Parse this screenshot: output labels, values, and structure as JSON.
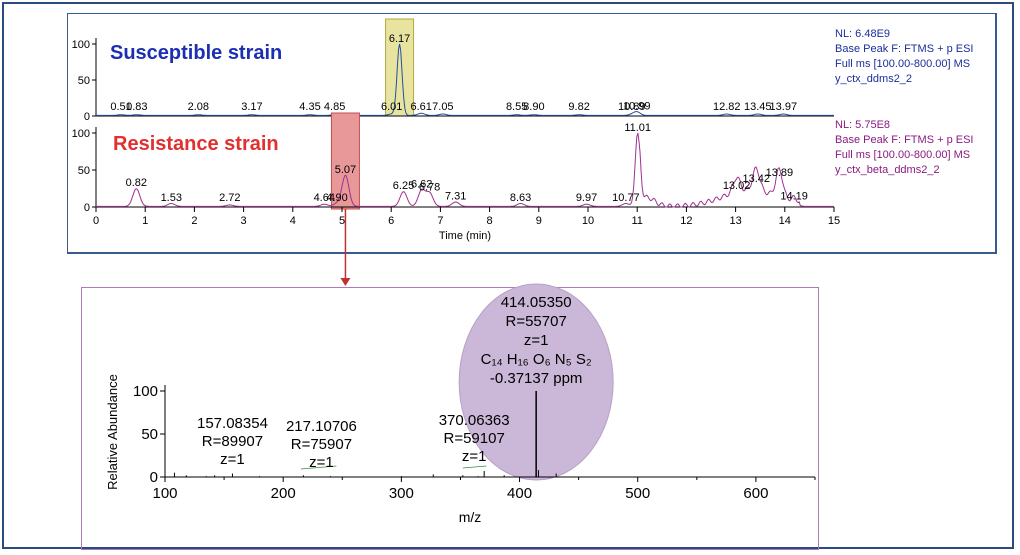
{
  "colors": {
    "frame": "#2a4a80",
    "susceptible_title": "#1c2fb3",
    "resistance_title": "#e03030",
    "trace_top": "#2050a0",
    "trace_mid": "#a03090",
    "trace_ms": "#000000",
    "highlight_yellow": "#e8e4a0",
    "highlight_red": "#e89898",
    "ellipse": "#cbb8d8",
    "arrow": "#c03030",
    "ms_frame": "#b07ab8",
    "info_top": "#1a2e9a",
    "info_mid": "#8a1a80"
  },
  "chromatogram_top": {
    "label": "Susceptible strain",
    "info": [
      "NL: 6.48E9",
      "Base Peak F: FTMS + p ESI",
      "Full ms [100.00-800.00]  MS",
      "y_ctx_ddms2_2"
    ]
  },
  "chromatogram_bottom": {
    "label": "Resistance strain",
    "info": [
      "NL: 5.75E8",
      "Base Peak F: FTMS + p ESI",
      "Full ms [100.00-800.00]  MS",
      "y_ctx_beta_ddms2_2"
    ]
  },
  "mass_spectrum": {
    "main_peak_lines": [
      "414.05350",
      "R=55707",
      "z=1",
      "C₁₄ H₁₆ O₆ N₅ S₂",
      "-0.37137 ppm"
    ]
  },
  "chart_data": [
    {
      "type": "line",
      "series_label": "Susceptible strain",
      "xlim": [
        0,
        15
      ],
      "ylim": [
        0,
        100
      ],
      "yticks": [
        0,
        50,
        100
      ],
      "peaks": [
        {
          "x": 0.51,
          "y": 1
        },
        {
          "x": 0.83,
          "y": 1
        },
        {
          "x": 2.08,
          "y": 1
        },
        {
          "x": 3.17,
          "y": 1
        },
        {
          "x": 4.35,
          "y": 1
        },
        {
          "x": 4.85,
          "y": 1
        },
        {
          "x": 6.01,
          "y": 2
        },
        {
          "x": 6.17,
          "y": 100
        },
        {
          "x": 6.61,
          "y": 3
        },
        {
          "x": 7.05,
          "y": 2
        },
        {
          "x": 8.55,
          "y": 1
        },
        {
          "x": 8.9,
          "y": 1
        },
        {
          "x": 9.82,
          "y": 1
        },
        {
          "x": 10.89,
          "y": 1
        },
        {
          "x": 10.99,
          "y": 5
        },
        {
          "x": 12.82,
          "y": 2
        },
        {
          "x": 13.45,
          "y": 2
        },
        {
          "x": 13.97,
          "y": 2
        }
      ],
      "peak_labels": [
        {
          "x": 0.51,
          "text": "0.51"
        },
        {
          "x": 0.83,
          "text": "0.83"
        },
        {
          "x": 2.08,
          "text": "2.08"
        },
        {
          "x": 3.17,
          "text": "3.17"
        },
        {
          "x": 4.35,
          "text": "4.35"
        },
        {
          "x": 4.85,
          "text": "4.85"
        },
        {
          "x": 6.01,
          "text": "6.01"
        },
        {
          "x": 6.17,
          "text": "6.17"
        },
        {
          "x": 6.61,
          "text": "6.61"
        },
        {
          "x": 7.05,
          "text": "7.05"
        },
        {
          "x": 8.55,
          "text": "8.55"
        },
        {
          "x": 8.9,
          "text": "8.90"
        },
        {
          "x": 9.82,
          "text": "9.82"
        },
        {
          "x": 10.89,
          "text": "10.89"
        },
        {
          "x": 10.99,
          "text": "10.99"
        },
        {
          "x": 12.82,
          "text": "12.82"
        },
        {
          "x": 13.45,
          "text": "13.45"
        },
        {
          "x": 13.97,
          "text": "13.97"
        }
      ],
      "highlight_peak": 6.17
    },
    {
      "type": "line",
      "series_label": "Resistance strain",
      "xlabel": "Time (min)",
      "xlim": [
        0,
        15
      ],
      "ylim": [
        0,
        100
      ],
      "xticks": [
        0,
        1,
        2,
        3,
        4,
        5,
        6,
        7,
        8,
        9,
        10,
        11,
        12,
        13,
        14,
        15
      ],
      "yticks": [
        0,
        50,
        100
      ],
      "peaks": [
        {
          "x": 0.82,
          "y": 24
        },
        {
          "x": 1.53,
          "y": 4
        },
        {
          "x": 2.72,
          "y": 2
        },
        {
          "x": 4.64,
          "y": 3
        },
        {
          "x": 4.9,
          "y": 4
        },
        {
          "x": 5.07,
          "y": 42
        },
        {
          "x": 6.25,
          "y": 20
        },
        {
          "x": 6.62,
          "y": 22
        },
        {
          "x": 6.78,
          "y": 18
        },
        {
          "x": 7.31,
          "y": 6
        },
        {
          "x": 8.63,
          "y": 4
        },
        {
          "x": 9.97,
          "y": 3
        },
        {
          "x": 10.77,
          "y": 4
        },
        {
          "x": 11.01,
          "y": 100
        },
        {
          "x": 13.02,
          "y": 20
        },
        {
          "x": 13.42,
          "y": 30
        },
        {
          "x": 13.89,
          "y": 38
        },
        {
          "x": 14.19,
          "y": 6
        }
      ],
      "peak_labels": [
        {
          "x": 0.82,
          "text": "0.82"
        },
        {
          "x": 1.53,
          "text": "1.53"
        },
        {
          "x": 2.72,
          "text": "2.72"
        },
        {
          "x": 4.64,
          "text": "4.64"
        },
        {
          "x": 4.9,
          "text": "4.90"
        },
        {
          "x": 5.07,
          "text": "5.07"
        },
        {
          "x": 6.25,
          "text": "6.25"
        },
        {
          "x": 6.62,
          "text": "6.62"
        },
        {
          "x": 6.78,
          "text": "6.78"
        },
        {
          "x": 7.31,
          "text": "7.31"
        },
        {
          "x": 8.63,
          "text": "8.63"
        },
        {
          "x": 9.97,
          "text": "9.97"
        },
        {
          "x": 10.77,
          "text": "10.77"
        },
        {
          "x": 11.01,
          "text": "11.01"
        },
        {
          "x": 13.02,
          "text": "13.02"
        },
        {
          "x": 13.42,
          "text": "13.42"
        },
        {
          "x": 13.89,
          "text": "13.89"
        },
        {
          "x": 14.19,
          "text": "14.19"
        }
      ],
      "highlight_peak": 5.07
    },
    {
      "type": "bar",
      "xlabel": "m/z",
      "ylabel": "Relative Abundance",
      "xlim": [
        100,
        650
      ],
      "ylim": [
        0,
        100
      ],
      "xticks": [
        100,
        200,
        300,
        400,
        500,
        600
      ],
      "yticks": [
        0,
        50,
        100
      ],
      "sticks": [
        {
          "x": 108,
          "y": 5
        },
        {
          "x": 118,
          "y": 2
        },
        {
          "x": 135,
          "y": 1
        },
        {
          "x": 142,
          "y": 2
        },
        {
          "x": 157.08,
          "y": 4
        },
        {
          "x": 180,
          "y": 1
        },
        {
          "x": 217.11,
          "y": 2
        },
        {
          "x": 240,
          "y": 1
        },
        {
          "x": 300,
          "y": 1
        },
        {
          "x": 327,
          "y": 3
        },
        {
          "x": 352,
          "y": 2
        },
        {
          "x": 365,
          "y": 1
        },
        {
          "x": 370.06,
          "y": 7
        },
        {
          "x": 387,
          "y": 2
        },
        {
          "x": 414.05,
          "y": 100
        },
        {
          "x": 416,
          "y": 8
        },
        {
          "x": 431,
          "y": 4
        }
      ],
      "peak_annotations": [
        {
          "x": 157.08,
          "lines": [
            "157.08354",
            "R=89907",
            "z=1"
          ]
        },
        {
          "x": 217.11,
          "lines": [
            "217.10706",
            "R=75907",
            "z=1"
          ]
        },
        {
          "x": 370.06,
          "lines": [
            "370.06363",
            "R=59107",
            "z=1"
          ]
        }
      ]
    }
  ]
}
